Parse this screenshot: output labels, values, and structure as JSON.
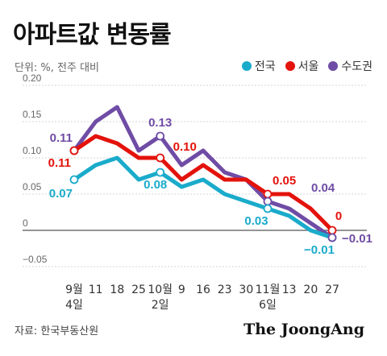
{
  "header": {
    "title": "아파트값 변동률",
    "unit": "단위: %, 전주 대비"
  },
  "legend": [
    {
      "label": "전국",
      "color": "#1aabcb"
    },
    {
      "label": "서울",
      "color": "#e3120b"
    },
    {
      "label": "수도권",
      "color": "#6f4ca5"
    }
  ],
  "footer": {
    "source": "자료: 한국부동산원",
    "brand": "The JoongAng"
  },
  "chart_data": {
    "type": "line",
    "x": [
      "9월 4일",
      "11",
      "18",
      "25",
      "10월 2일",
      "9",
      "16",
      "23",
      "30",
      "11월 6일",
      "13",
      "20",
      "27"
    ],
    "x_tick_lines": [
      [
        "9월",
        "4일"
      ],
      [
        "11"
      ],
      [
        "18"
      ],
      [
        "25"
      ],
      [
        "10월",
        "2일"
      ],
      [
        "9"
      ],
      [
        "16"
      ],
      [
        "23"
      ],
      [
        "30"
      ],
      [
        "11월",
        "6일"
      ],
      [
        "13"
      ],
      [
        "20"
      ],
      [
        "27"
      ]
    ],
    "ylim": [
      -0.05,
      0.2
    ],
    "yticks": [
      0.2,
      0.15,
      0.1,
      0.05,
      0,
      -0.05
    ],
    "ytick_labels": [
      "0.20",
      "0.15",
      "0.10",
      "0.05",
      "0",
      "−0.05"
    ],
    "grid": true,
    "series": [
      {
        "name": "전국",
        "color": "#1aabcb",
        "values": [
          0.07,
          0.09,
          0.1,
          0.07,
          0.08,
          0.06,
          0.07,
          0.05,
          0.04,
          0.03,
          0.02,
          0.0,
          -0.01
        ]
      },
      {
        "name": "서울",
        "color": "#e3120b",
        "values": [
          0.11,
          0.13,
          0.12,
          0.1,
          0.1,
          0.07,
          0.09,
          0.07,
          0.07,
          0.05,
          0.05,
          0.03,
          0.0
        ]
      },
      {
        "name": "수도권",
        "color": "#6f4ca5",
        "values": [
          0.11,
          0.15,
          0.17,
          0.11,
          0.13,
          0.09,
          0.11,
          0.08,
          0.07,
          0.04,
          0.03,
          0.01,
          -0.01
        ]
      }
    ],
    "annotations": [
      {
        "series": 2,
        "index": 0,
        "text": "0.11"
      },
      {
        "series": 1,
        "index": 0,
        "text": "0.11"
      },
      {
        "series": 0,
        "index": 0,
        "text": "0.07"
      },
      {
        "series": 2,
        "index": 4,
        "text": "0.13"
      },
      {
        "series": 1,
        "index": 4,
        "text": "0.10"
      },
      {
        "series": 0,
        "index": 4,
        "text": "0.08"
      },
      {
        "series": 1,
        "index": 9,
        "text": "0.05"
      },
      {
        "series": 2,
        "index": 9,
        "text": "0.04"
      },
      {
        "series": 0,
        "index": 9,
        "text": "0.03"
      },
      {
        "series": 1,
        "index": 12,
        "text": "0"
      },
      {
        "series": 0,
        "index": 12,
        "text": "−0.01"
      },
      {
        "series": 2,
        "index": 12,
        "text": "−0.01"
      }
    ]
  }
}
